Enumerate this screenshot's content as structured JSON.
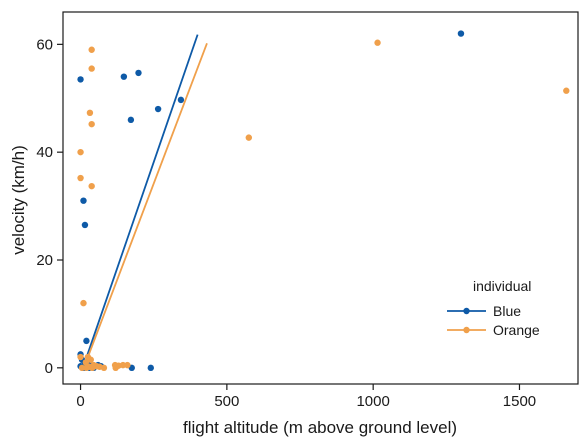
{
  "chart_data": {
    "type": "scatter",
    "xlabel": "flight altitude (m above ground level)",
    "ylabel": "velocity (km/h)",
    "xlim": [
      -60,
      1700
    ],
    "ylim": [
      -3,
      66
    ],
    "xticks": [
      0,
      500,
      1000,
      1500
    ],
    "yticks": [
      0,
      20,
      40,
      60
    ],
    "grid": false,
    "legend": {
      "title": "individual",
      "placement": "right"
    },
    "series": [
      {
        "name": "Blue",
        "color": "#0e5aa7",
        "points": [
          [
            0,
            53.5
          ],
          [
            10,
            31
          ],
          [
            15,
            26.5
          ],
          [
            20,
            5
          ],
          [
            0,
            2.5
          ],
          [
            5,
            1.5
          ],
          [
            15,
            1
          ],
          [
            25,
            0.5
          ],
          [
            35,
            0.5
          ],
          [
            60,
            0.5
          ],
          [
            70,
            0.3
          ],
          [
            0,
            0.3
          ],
          [
            3,
            0.2
          ],
          [
            8,
            0
          ],
          [
            12,
            0
          ],
          [
            20,
            0.2
          ],
          [
            30,
            0
          ],
          [
            45,
            0
          ],
          [
            175,
            0
          ],
          [
            240,
            0
          ],
          [
            148,
            54
          ],
          [
            198,
            54.7
          ],
          [
            265,
            48
          ],
          [
            343,
            49.7
          ],
          [
            172,
            46
          ],
          [
            1300,
            62
          ]
        ],
        "fit": {
          "from": [
            22,
            2.2
          ],
          "to": [
            400,
            61.8
          ]
        }
      },
      {
        "name": "Orange",
        "color": "#f0a04b",
        "points": [
          [
            38,
            59
          ],
          [
            38,
            55.5
          ],
          [
            32,
            47.3
          ],
          [
            38,
            45.2
          ],
          [
            0,
            40
          ],
          [
            0,
            35.2
          ],
          [
            38,
            33.7
          ],
          [
            10,
            12
          ],
          [
            0,
            2
          ],
          [
            18,
            1
          ],
          [
            25,
            2
          ],
          [
            35,
            1.5
          ],
          [
            45,
            0.5
          ],
          [
            55,
            0.3
          ],
          [
            65,
            0.2
          ],
          [
            80,
            0
          ],
          [
            5,
            0
          ],
          [
            20,
            0
          ],
          [
            30,
            0.2
          ],
          [
            40,
            0
          ],
          [
            118,
            0.5
          ],
          [
            130,
            0.4
          ],
          [
            145,
            0.5
          ],
          [
            160,
            0.5
          ],
          [
            120,
            0
          ],
          [
            575,
            42.7
          ],
          [
            1015,
            60.3
          ],
          [
            1660,
            51.4
          ]
        ],
        "fit": {
          "from": [
            25,
            2
          ],
          "to": [
            432,
            60.2
          ]
        }
      }
    ]
  }
}
